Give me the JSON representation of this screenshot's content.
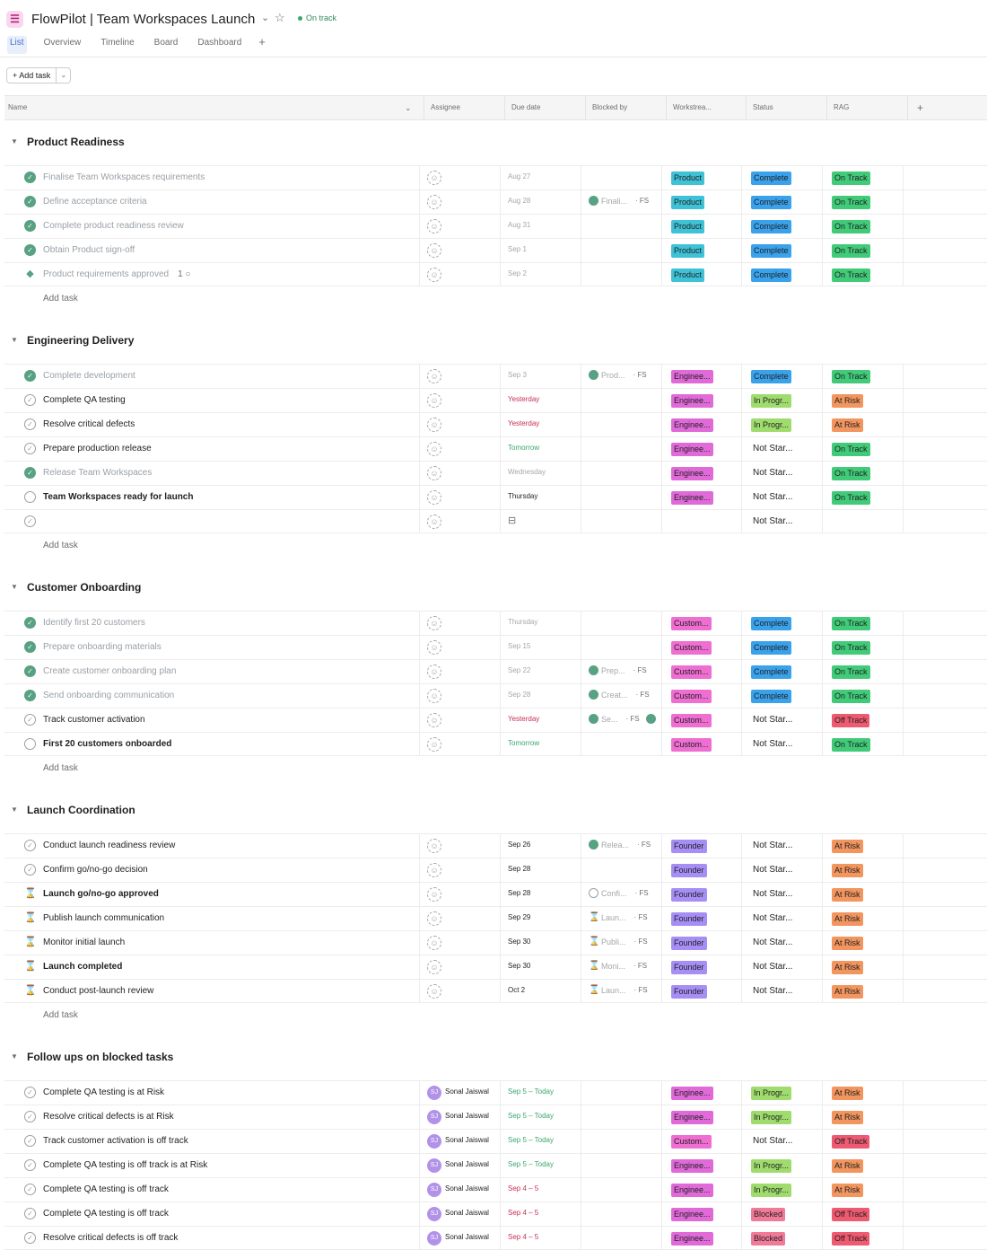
{
  "app": {
    "title": "FlowPilot | Team Workspaces Launch",
    "status": "On track"
  },
  "tabs": [
    "List",
    "Overview",
    "Timeline",
    "Board",
    "Dashboard"
  ],
  "toolbar": {
    "add_task": "Add task"
  },
  "columns": [
    "Name",
    "Assignee",
    "Due date",
    "Blocked by",
    "Workstrea...",
    "Status",
    "RAG"
  ],
  "add_task_label": "Add task",
  "colors": {
    "Product": "#3fc1d6",
    "Enginee...": "#e16ad9",
    "Custom...": "#ef6ed1",
    "Founder": "#a68ef5",
    "Complete": "#3aa2eb",
    "In Progr...": "#9fdc6d",
    "Blocked": "#f07a98",
    "On Track": "#41cb79",
    "At Risk": "#f2955e",
    "Off Track": "#ee5a70"
  },
  "sections": [
    {
      "name": "Product Readiness",
      "add_row": true,
      "tasks": [
        {
          "check": "done",
          "name": "Finalise Team Workspaces requirements",
          "style": "dim",
          "assignee": "",
          "due": "Aug 27",
          "due_style": "grey",
          "blocked": null,
          "ws": "Product",
          "status": "Complete",
          "rag": "On Track"
        },
        {
          "check": "done",
          "name": "Define acceptance criteria",
          "style": "dim",
          "assignee": "",
          "due": "Aug 28",
          "due_style": "grey",
          "blocked": {
            "icon": "done",
            "text": "Finali...",
            "fs": "· FS"
          },
          "ws": "Product",
          "status": "Complete",
          "rag": "On Track"
        },
        {
          "check": "done",
          "name": "Complete product readiness review",
          "style": "dim",
          "assignee": "",
          "due": "Aug 31",
          "due_style": "grey",
          "blocked": null,
          "ws": "Product",
          "status": "Complete",
          "rag": "On Track"
        },
        {
          "check": "done",
          "name": "Obtain Product sign-off",
          "style": "dim",
          "assignee": "",
          "due": "Sep 1",
          "due_style": "grey",
          "blocked": null,
          "ws": "Product",
          "status": "Complete",
          "rag": "On Track"
        },
        {
          "check": "diamond",
          "name": "Product requirements approved",
          "style": "dim",
          "extra": "1 ○",
          "assignee": "",
          "due": "Sep 2",
          "due_style": "grey",
          "blocked": null,
          "ws": "Product",
          "status": "Complete",
          "rag": "On Track"
        }
      ]
    },
    {
      "name": "Engineering Delivery",
      "add_row": true,
      "tasks": [
        {
          "check": "done",
          "name": "Complete development",
          "style": "dim",
          "assignee": "",
          "due": "Sep 3",
          "due_style": "grey",
          "blocked": {
            "icon": "done",
            "text": "Prod...",
            "fs": "· FS"
          },
          "ws": "Enginee...",
          "status": "Complete",
          "rag": "On Track"
        },
        {
          "check": "open",
          "name": "Complete QA testing",
          "style": "",
          "assignee": "",
          "due": "Yesterday",
          "due_style": "red",
          "blocked": null,
          "ws": "Enginee...",
          "status": "In Progr...",
          "rag": "At Risk"
        },
        {
          "check": "open",
          "name": "Resolve critical defects",
          "style": "",
          "assignee": "",
          "due": "Yesterday",
          "due_style": "red",
          "blocked": null,
          "ws": "Enginee...",
          "status": "In Progr...",
          "rag": "At Risk"
        },
        {
          "check": "open",
          "name": "Prepare production release",
          "style": "",
          "assignee": "",
          "due": "Tomorrow",
          "due_style": "green",
          "blocked": null,
          "ws": "Enginee...",
          "status": "Not Star...",
          "rag": "On Track"
        },
        {
          "check": "done",
          "name": "Release Team Workspaces",
          "style": "dim",
          "assignee": "",
          "due": "Wednesday",
          "due_style": "grey",
          "blocked": null,
          "ws": "Enginee...",
          "status": "Not Star...",
          "rag": "On Track"
        },
        {
          "check": "ring",
          "name": "Team Workspaces ready for launch",
          "style": "bold",
          "assignee": "",
          "due": "Thursday",
          "due_style": "dark",
          "blocked": null,
          "ws": "Enginee...",
          "status": "Not Star...",
          "rag": "On Track"
        },
        {
          "check": "open",
          "name": "",
          "style": "",
          "assignee": "",
          "due": "⊟",
          "due_style": "calicon",
          "blocked": null,
          "ws": "",
          "status": "Not Star...",
          "rag": ""
        }
      ]
    },
    {
      "name": "Customer Onboarding",
      "add_row": true,
      "tasks": [
        {
          "check": "done",
          "name": "Identify first 20 customers",
          "style": "dim",
          "assignee": "",
          "due": "Thursday",
          "due_style": "grey",
          "blocked": null,
          "ws": "Custom...",
          "status": "Complete",
          "rag": "On Track"
        },
        {
          "check": "done",
          "name": "Prepare onboarding materials",
          "style": "dim",
          "assignee": "",
          "due": "Sep 15",
          "due_style": "grey",
          "blocked": null,
          "ws": "Custom...",
          "status": "Complete",
          "rag": "On Track"
        },
        {
          "check": "done",
          "name": "Create customer onboarding plan",
          "style": "dim",
          "assignee": "",
          "due": "Sep 22",
          "due_style": "grey",
          "blocked": {
            "icon": "done",
            "text": "Prep...",
            "fs": "· FS"
          },
          "ws": "Custom...",
          "status": "Complete",
          "rag": "On Track"
        },
        {
          "check": "done",
          "name": "Send onboarding communication",
          "style": "dim",
          "assignee": "",
          "due": "Sep 28",
          "due_style": "grey",
          "blocked": {
            "icon": "done",
            "text": "Creat...",
            "fs": "· FS"
          },
          "ws": "Custom...",
          "status": "Complete",
          "rag": "On Track"
        },
        {
          "check": "open",
          "name": "Track customer activation",
          "style": "",
          "assignee": "",
          "due": "Yesterday",
          "due_style": "red",
          "blocked": {
            "icon": "done",
            "text": "Se...",
            "fs": "· FS",
            "tail": true
          },
          "ws": "Custom...",
          "status": "Not Star...",
          "rag": "Off Track"
        },
        {
          "check": "ring",
          "name": "First 20 customers onboarded",
          "style": "bold",
          "assignee": "",
          "due": "Tomorrow",
          "due_style": "green",
          "blocked": null,
          "ws": "Custom...",
          "status": "Not Star...",
          "rag": "On Track"
        }
      ]
    },
    {
      "name": "Launch Coordination",
      "add_row": true,
      "tasks": [
        {
          "check": "open",
          "name": "Conduct launch readiness review",
          "style": "",
          "assignee": "",
          "due": "Sep 26",
          "due_style": "dark",
          "blocked": {
            "icon": "done",
            "text": "Relea...",
            "fs": "· FS"
          },
          "ws": "Founder",
          "status": "Not Star...",
          "rag": "At Risk"
        },
        {
          "check": "open",
          "name": "Confirm go/no-go decision",
          "style": "",
          "assignee": "",
          "due": "Sep 28",
          "due_style": "dark",
          "blocked": null,
          "ws": "Founder",
          "status": "Not Star...",
          "rag": "At Risk"
        },
        {
          "check": "hour",
          "name": "Launch go/no-go approved",
          "style": "bold",
          "assignee": "",
          "due": "Sep 28",
          "due_style": "dark",
          "blocked": {
            "icon": "open",
            "text": "Confi...",
            "fs": "· FS"
          },
          "ws": "Founder",
          "status": "Not Star...",
          "rag": "At Risk"
        },
        {
          "check": "hour",
          "name": "Publish launch communication",
          "style": "",
          "assignee": "",
          "due": "Sep 29",
          "due_style": "dark",
          "blocked": {
            "icon": "hour",
            "text": "Laun...",
            "fs": "· FS"
          },
          "ws": "Founder",
          "status": "Not Star...",
          "rag": "At Risk"
        },
        {
          "check": "hour",
          "name": "Monitor initial launch",
          "style": "",
          "assignee": "",
          "due": "Sep 30",
          "due_style": "dark",
          "blocked": {
            "icon": "hour",
            "text": "Publi...",
            "fs": "· FS"
          },
          "ws": "Founder",
          "status": "Not Star...",
          "rag": "At Risk"
        },
        {
          "check": "hour",
          "name": "Launch completed",
          "style": "bold",
          "assignee": "",
          "due": "Sep 30",
          "due_style": "dark",
          "blocked": {
            "icon": "hour",
            "text": "Moni...",
            "fs": "· FS"
          },
          "ws": "Founder",
          "status": "Not Star...",
          "rag": "At Risk"
        },
        {
          "check": "hour",
          "name": "Conduct post-launch review",
          "style": "",
          "assignee": "",
          "due": "Oct 2",
          "due_style": "dark",
          "blocked": {
            "icon": "hour",
            "text": "Laun...",
            "fs": "· FS"
          },
          "ws": "Founder",
          "status": "Not Star...",
          "rag": "At Risk"
        }
      ]
    },
    {
      "name": "Follow ups on blocked tasks",
      "add_row": false,
      "tasks": [
        {
          "check": "open",
          "name": "Complete QA testing is at Risk",
          "style": "",
          "assignee": "Sonal Jaiswal",
          "initials": "SJ",
          "due": "Sep 5 – Today",
          "due_style": "green",
          "blocked": null,
          "ws": "Enginee...",
          "status": "In Progr...",
          "rag": "At Risk"
        },
        {
          "check": "open",
          "name": "Resolve critical defects is at Risk",
          "style": "",
          "assignee": "Sonal Jaiswal",
          "initials": "SJ",
          "due": "Sep 5 – Today",
          "due_style": "green",
          "blocked": null,
          "ws": "Enginee...",
          "status": "In Progr...",
          "rag": "At Risk"
        },
        {
          "check": "open",
          "name": "Track customer activation is off track",
          "style": "",
          "assignee": "Sonal Jaiswal",
          "initials": "SJ",
          "due": "Sep 5 – Today",
          "due_style": "green",
          "blocked": null,
          "ws": "Custom...",
          "status": "Not Star...",
          "rag": "Off Track"
        },
        {
          "check": "open",
          "name": "Complete QA testing is off track is at Risk",
          "style": "",
          "assignee": "Sonal Jaiswal",
          "initials": "SJ",
          "due": "Sep 5 – Today",
          "due_style": "green",
          "blocked": null,
          "ws": "Enginee...",
          "status": "In Progr...",
          "rag": "At Risk"
        },
        {
          "check": "open",
          "name": "Complete QA testing is off track",
          "style": "",
          "assignee": "Sonal Jaiswal",
          "initials": "SJ",
          "due": "Sep 4 – 5",
          "due_style": "red",
          "blocked": null,
          "ws": "Enginee...",
          "status": "In Progr...",
          "rag": "At Risk"
        },
        {
          "check": "open",
          "name": "Complete QA testing is off track",
          "style": "",
          "assignee": "Sonal Jaiswal",
          "initials": "SJ",
          "due": "Sep 4 – 5",
          "due_style": "red",
          "blocked": null,
          "ws": "Enginee...",
          "status": "Blocked",
          "rag": "Off Track"
        },
        {
          "check": "open",
          "name": "Resolve critical defects is off track",
          "style": "",
          "assignee": "Sonal Jaiswal",
          "initials": "SJ",
          "due": "Sep 4 – 5",
          "due_style": "red",
          "blocked": null,
          "ws": "Enginee...",
          "status": "Blocked",
          "rag": "Off Track"
        }
      ]
    }
  ]
}
